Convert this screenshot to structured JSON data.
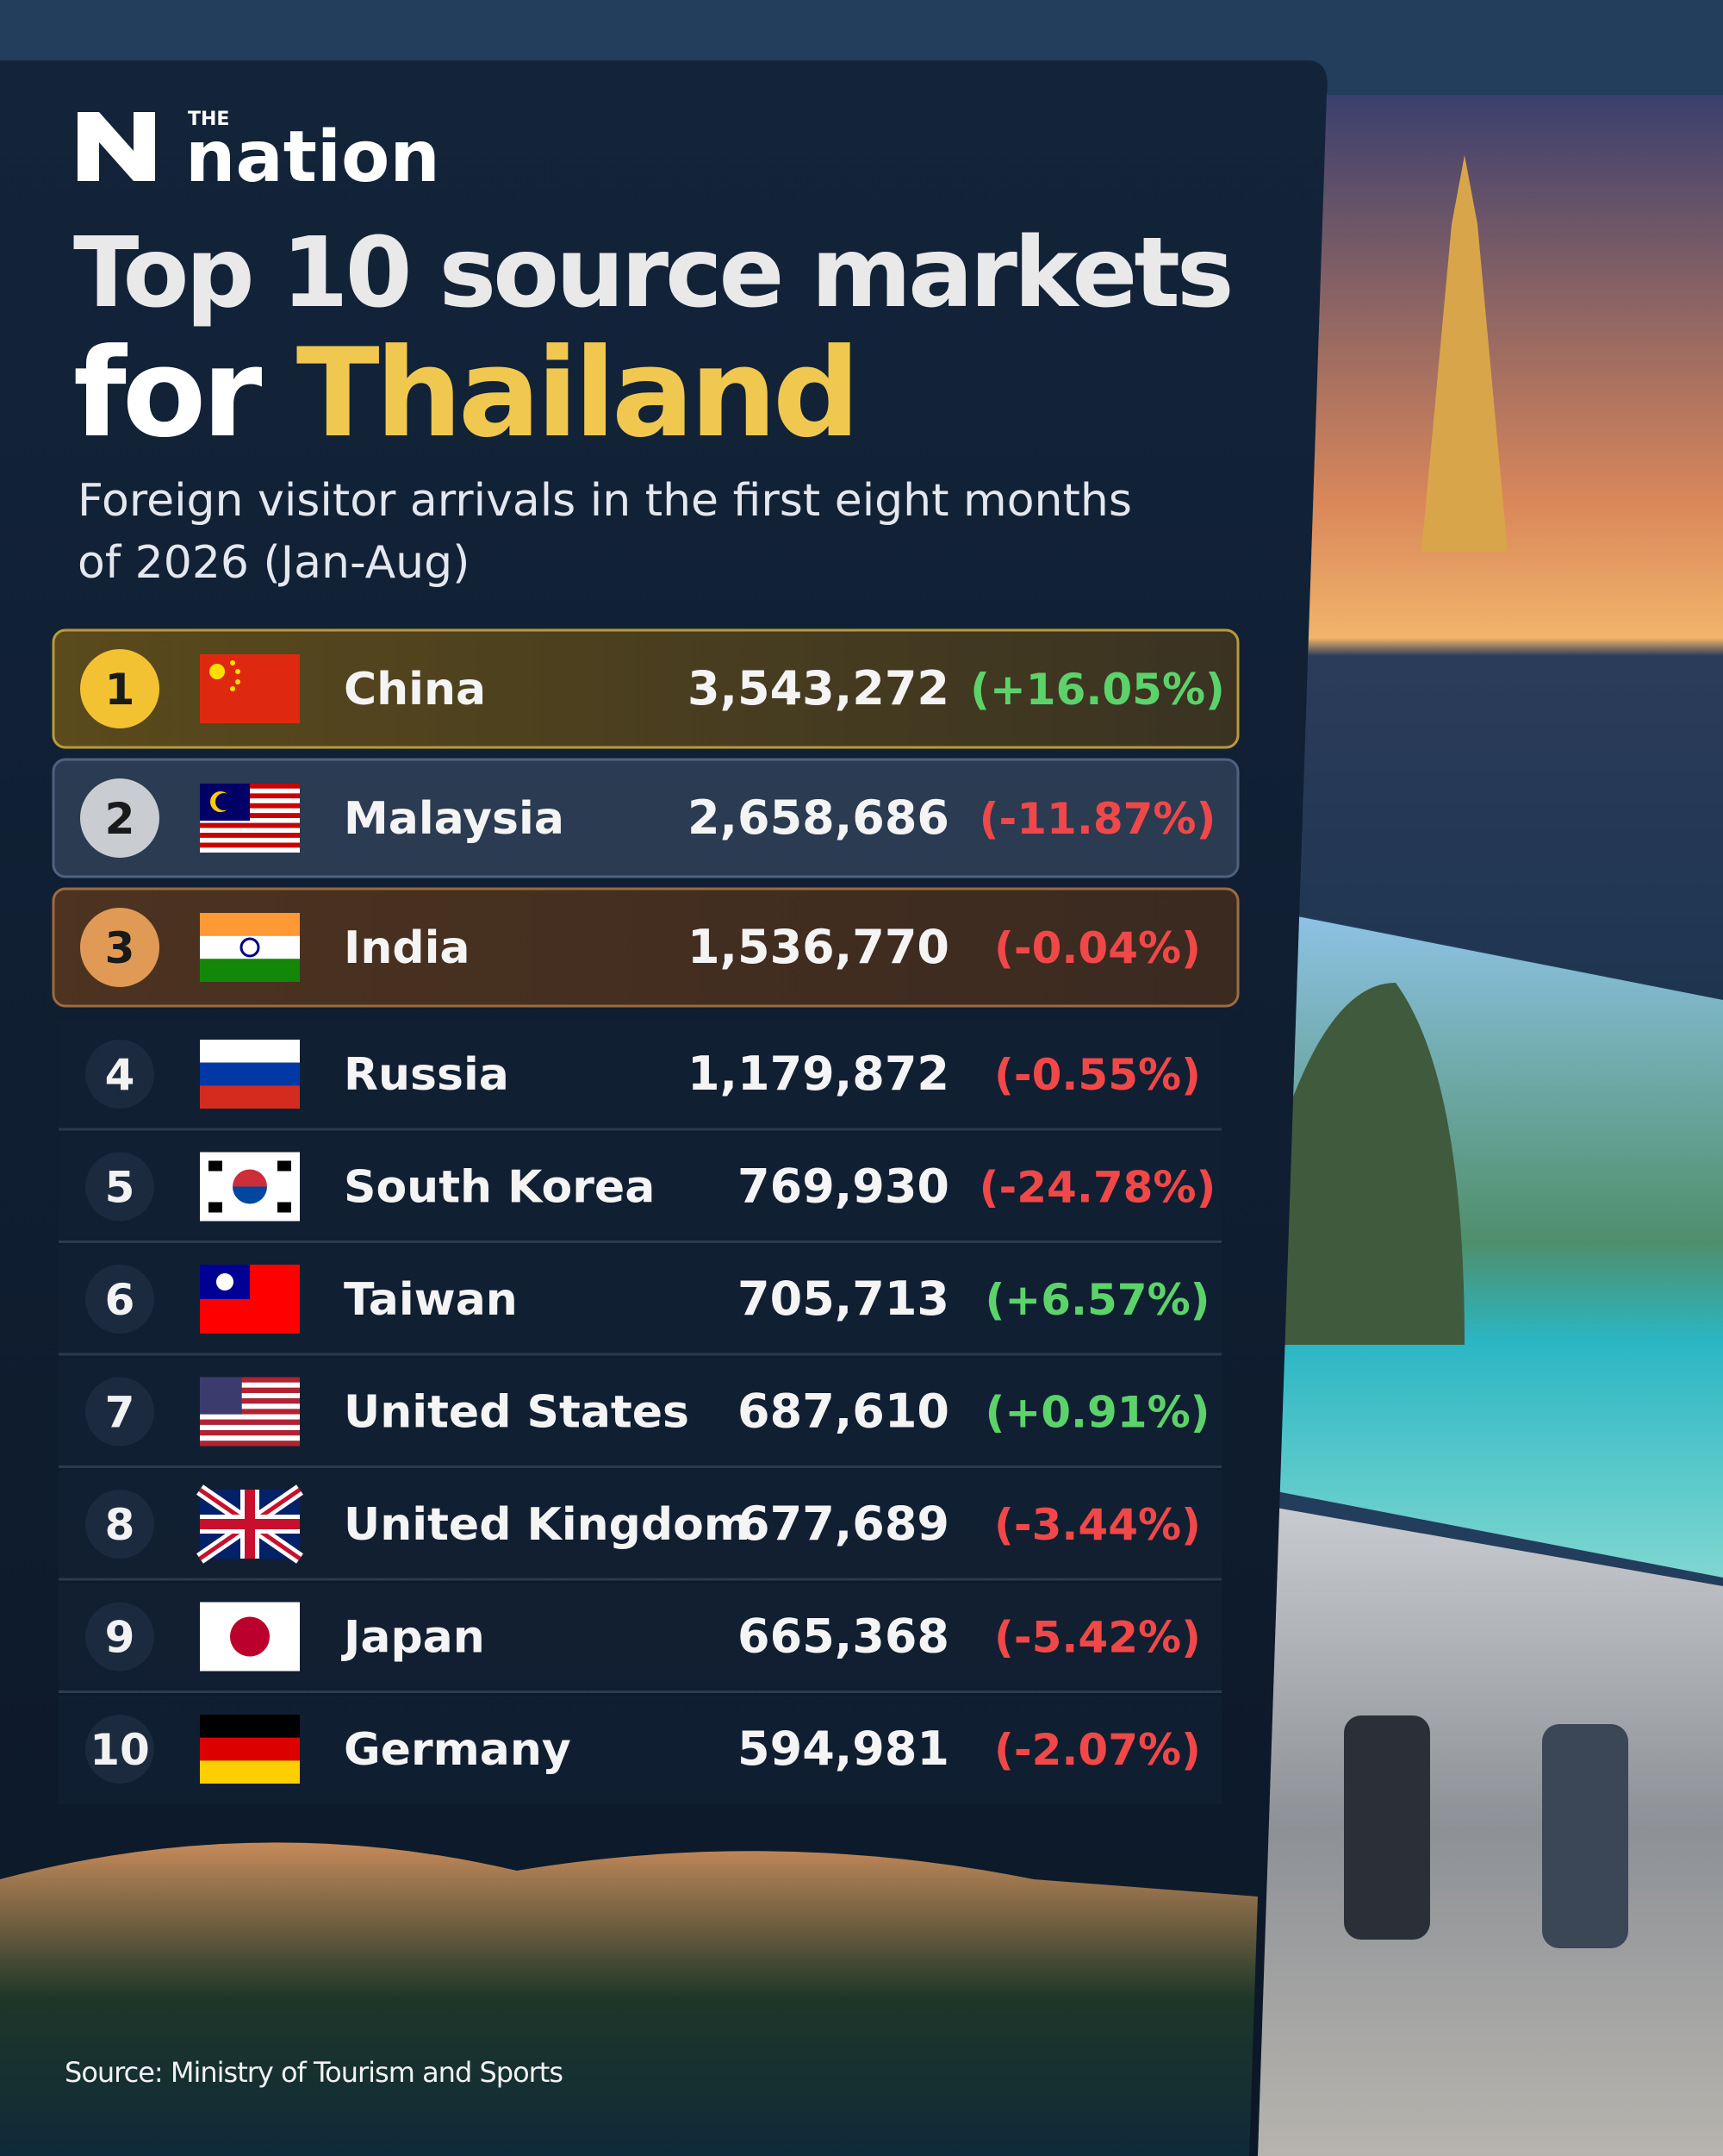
{
  "brand": {
    "small": "THE",
    "name": "nation"
  },
  "title": {
    "line1": "Top 10 source markets",
    "line2a": "for",
    "line2b": "Thailand"
  },
  "subtitle": [
    "Foreign visitor arrivals in the first eight months",
    "of 2026 (Jan-Aug)"
  ],
  "table": {
    "rows": [
      [
        "1",
        "China",
        "3,543,272",
        "(+16.05%)"
      ],
      [
        "2",
        "Malaysia",
        "2,658,686",
        "(-11.87%)"
      ],
      [
        "3",
        "India",
        "1,536,770",
        "(-0.04%)"
      ],
      [
        "4",
        "Russia",
        "1,179,872",
        "(-0.55%)"
      ],
      [
        "5",
        "South Korea",
        "769,930",
        "(-24.78%)"
      ],
      [
        "6",
        "Taiwan",
        "705,713",
        "(+6.57%)"
      ],
      [
        "7",
        "United States",
        "687,610",
        "(+0.91%)"
      ],
      [
        "8",
        "United Kingdom",
        "677,689",
        "(-3.44%)"
      ],
      [
        "9",
        "Japan",
        "665,368",
        "(-5.42%)"
      ],
      [
        "10",
        "Germany",
        "594,981",
        "(-2.07%)"
      ]
    ]
  },
  "source": "Source: Ministry of Tourism and Sports"
}
